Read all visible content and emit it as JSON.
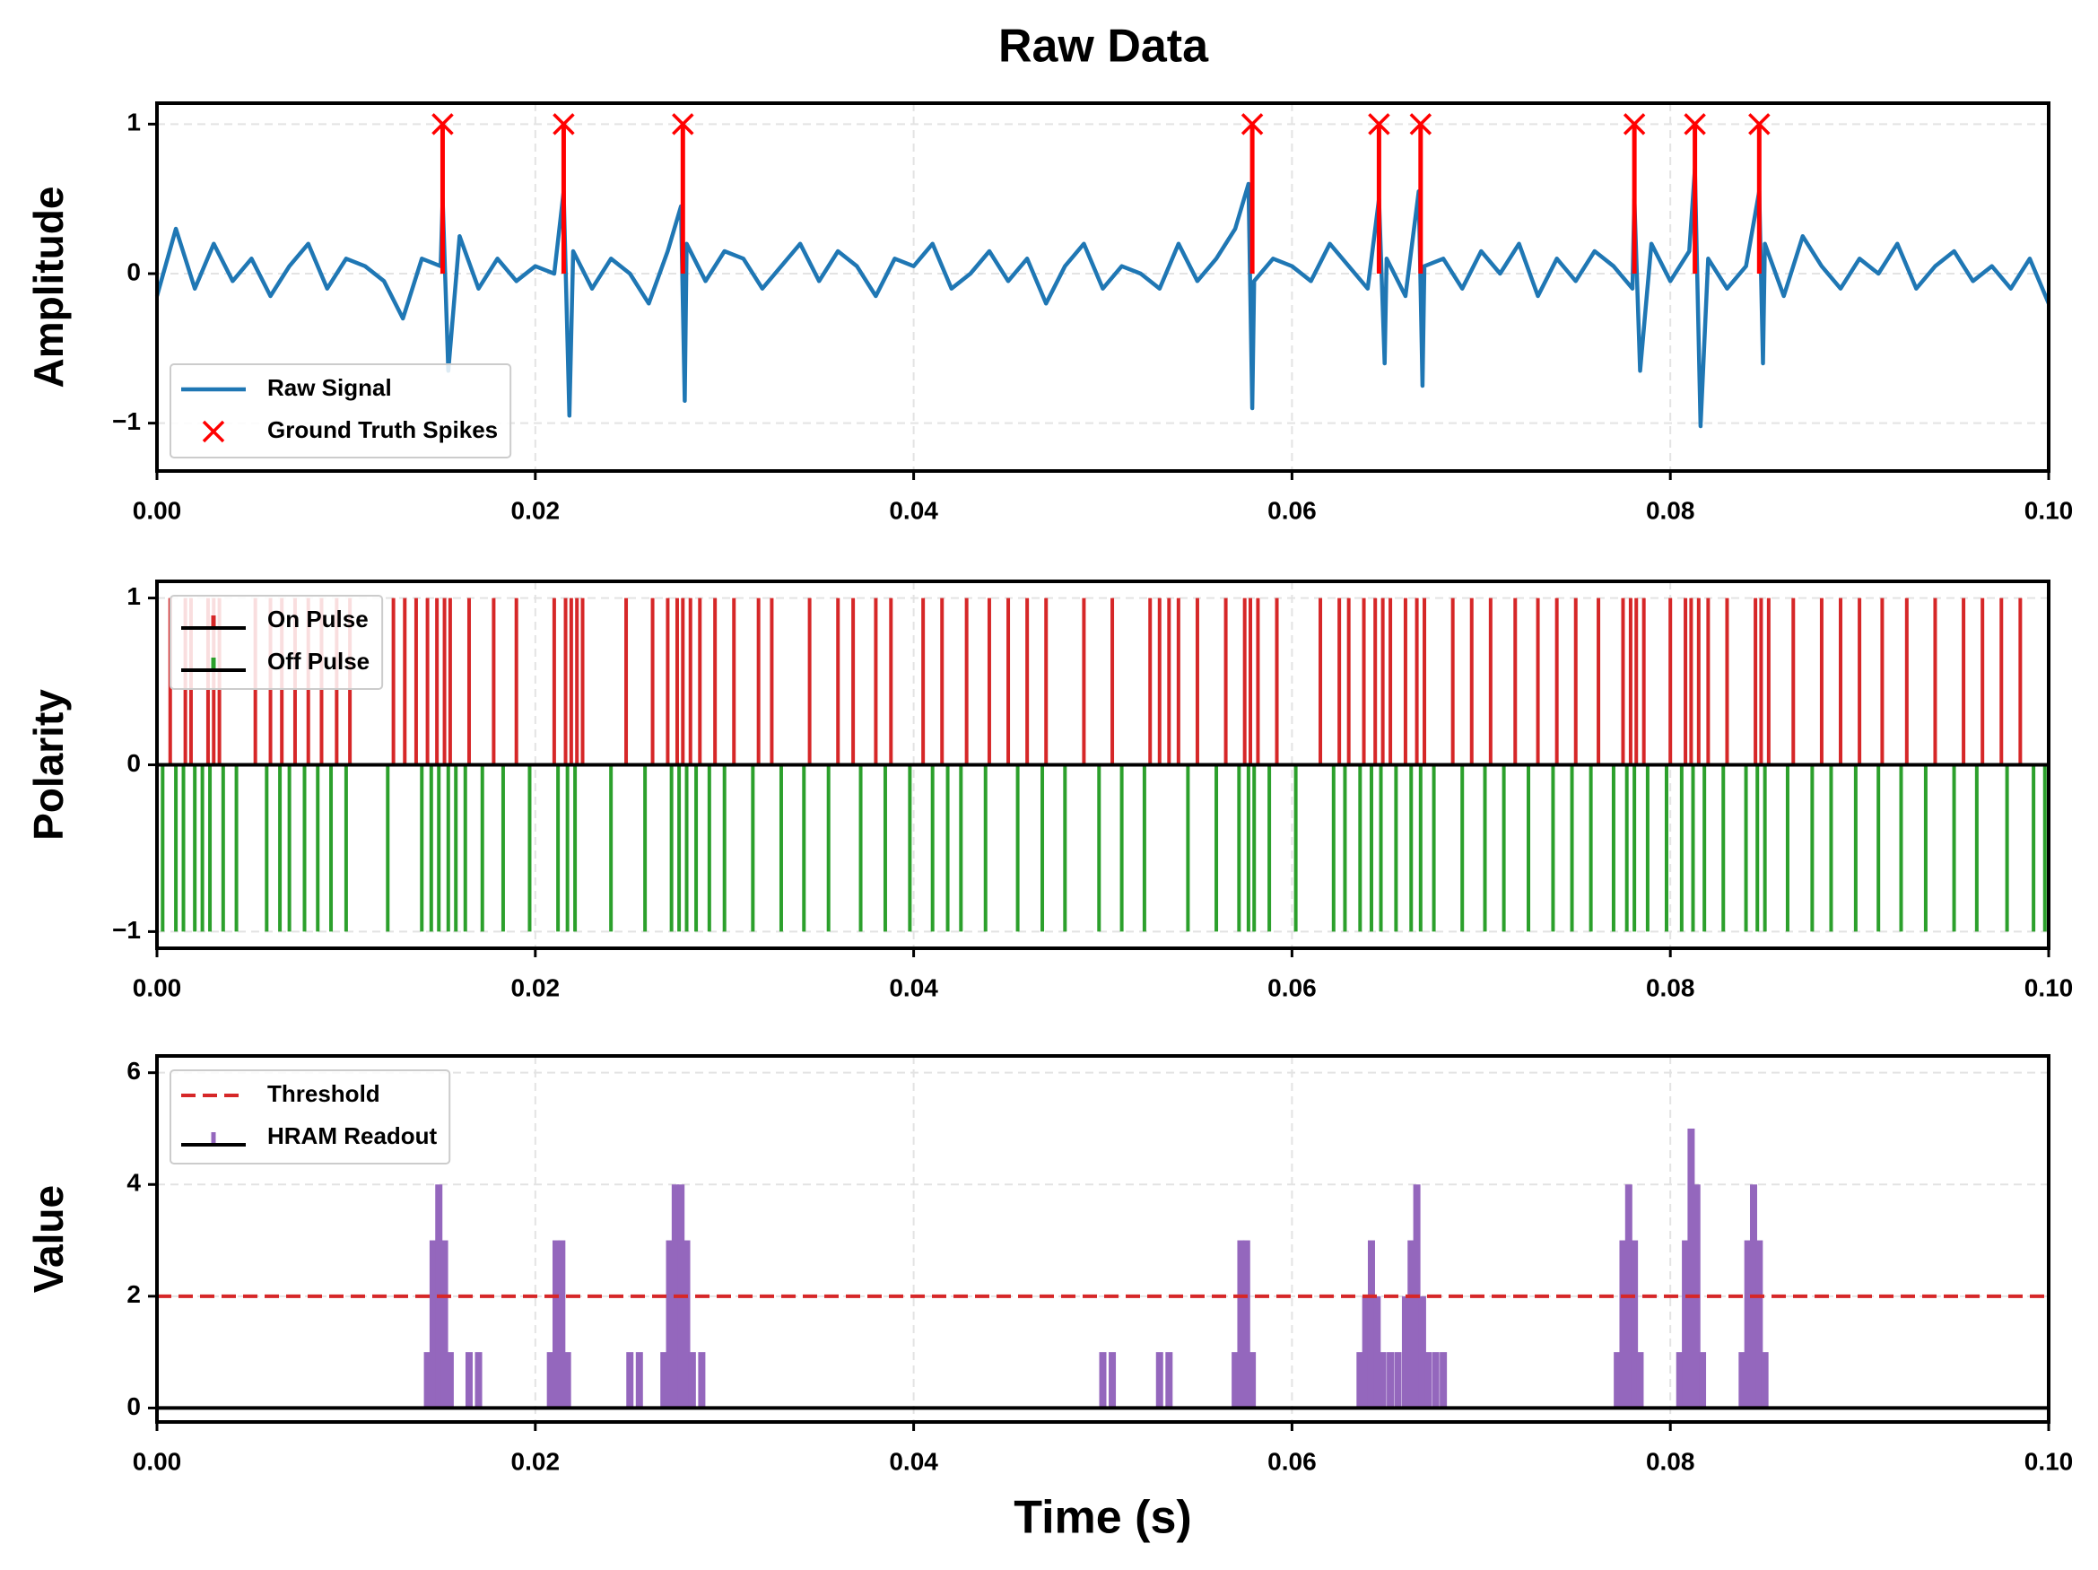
{
  "title": "Raw Data",
  "chart_data": [
    {
      "type": "line",
      "ylabel": "Amplitude",
      "legend": "lower left",
      "grid": true,
      "xlim": [
        0,
        0.1
      ],
      "xticks": [
        {
          "value": 0,
          "label": "0.00"
        },
        {
          "value": 0.02,
          "label": "0.02"
        },
        {
          "value": 0.04,
          "label": "0.04"
        },
        {
          "value": 0.06,
          "label": "0.06"
        },
        {
          "value": 0.08,
          "label": "0.08"
        },
        {
          "value": 0.1,
          "label": "0.10"
        }
      ],
      "ylim": [
        -1.32,
        1.14
      ],
      "yticks": [
        {
          "value": -1,
          "label": "−1"
        },
        0,
        1
      ],
      "series": [
        {
          "name": "Raw Signal",
          "color": "#1f77b4",
          "x": [
            0,
            0.001,
            0.002,
            0.003,
            0.004,
            0.005,
            0.006,
            0.007,
            0.008,
            0.009,
            0.01,
            0.011,
            0.012,
            0.013,
            0.014,
            0.015,
            0.0151,
            0.0154,
            0.016,
            0.017,
            0.018,
            0.019,
            0.02,
            0.021,
            0.0215,
            0.0218,
            0.022,
            0.023,
            0.024,
            0.025,
            0.026,
            0.027,
            0.0277,
            0.0279,
            0.028,
            0.029,
            0.03,
            0.031,
            0.032,
            0.033,
            0.034,
            0.035,
            0.036,
            0.037,
            0.038,
            0.039,
            0.04,
            0.041,
            0.042,
            0.043,
            0.044,
            0.045,
            0.046,
            0.047,
            0.048,
            0.049,
            0.05,
            0.051,
            0.052,
            0.053,
            0.054,
            0.055,
            0.056,
            0.057,
            0.0577,
            0.0579,
            0.058,
            0.059,
            0.06,
            0.061,
            0.062,
            0.063,
            0.064,
            0.0646,
            0.0649,
            0.065,
            0.066,
            0.0667,
            0.0669,
            0.067,
            0.068,
            0.069,
            0.07,
            0.071,
            0.072,
            0.073,
            0.074,
            0.075,
            0.076,
            0.077,
            0.078,
            0.0781,
            0.0784,
            0.079,
            0.08,
            0.081,
            0.0813,
            0.0816,
            0.082,
            0.083,
            0.084,
            0.0847,
            0.0849,
            0.085,
            0.086,
            0.087,
            0.088,
            0.089,
            0.09,
            0.091,
            0.092,
            0.093,
            0.094,
            0.095,
            0.096,
            0.097,
            0.098,
            0.099,
            0.1
          ],
          "values": [
            -0.15,
            0.3,
            -0.1,
            0.2,
            -0.05,
            0.1,
            -0.15,
            0.05,
            0.2,
            -0.1,
            0.1,
            0.05,
            -0.05,
            -0.3,
            0.1,
            0.05,
            0.5,
            -0.65,
            0.25,
            -0.1,
            0.1,
            -0.05,
            0.05,
            0.0,
            0.55,
            -0.95,
            0.15,
            -0.1,
            0.1,
            0.0,
            -0.2,
            0.15,
            0.45,
            -0.85,
            0.2,
            -0.05,
            0.15,
            0.1,
            -0.1,
            0.05,
            0.2,
            -0.05,
            0.15,
            0.05,
            -0.15,
            0.1,
            0.05,
            0.2,
            -0.1,
            0.0,
            0.15,
            -0.05,
            0.1,
            -0.2,
            0.05,
            0.2,
            -0.1,
            0.05,
            0.0,
            -0.1,
            0.2,
            -0.05,
            0.1,
            0.3,
            0.6,
            -0.9,
            -0.05,
            0.1,
            0.05,
            -0.05,
            0.2,
            0.05,
            -0.1,
            0.5,
            -0.6,
            0.1,
            -0.15,
            0.55,
            -0.75,
            0.05,
            0.1,
            -0.1,
            0.15,
            0.0,
            0.2,
            -0.15,
            0.1,
            -0.05,
            0.15,
            0.05,
            -0.1,
            0.5,
            -0.65,
            0.2,
            -0.05,
            0.15,
            0.7,
            -1.02,
            0.1,
            -0.1,
            0.05,
            0.55,
            -0.6,
            0.2,
            -0.15,
            0.25,
            0.05,
            -0.1,
            0.1,
            0.0,
            0.2,
            -0.1,
            0.05,
            0.15,
            -0.05,
            0.05,
            -0.1,
            0.1,
            -0.2
          ]
        },
        {
          "name": "Ground Truth Spikes",
          "color": "#ff0000",
          "marker": "x",
          "x": [
            0.0151,
            0.0215,
            0.0278,
            0.0579,
            0.0646,
            0.0668,
            0.0781,
            0.0813,
            0.0847
          ],
          "values": [
            1,
            1,
            1,
            1,
            1,
            1,
            1,
            1,
            1
          ]
        }
      ]
    },
    {
      "type": "event",
      "ylabel": "Polarity",
      "legend": "upper left",
      "grid": true,
      "xlim": [
        0,
        0.1
      ],
      "xticks": [
        {
          "value": 0,
          "label": "0.00"
        },
        {
          "value": 0.02,
          "label": "0.02"
        },
        {
          "value": 0.04,
          "label": "0.04"
        },
        {
          "value": 0.06,
          "label": "0.06"
        },
        {
          "value": 0.08,
          "label": "0.08"
        },
        {
          "value": 0.1,
          "label": "0.10"
        }
      ],
      "ylim": [
        -1.1,
        1.1
      ],
      "yticks": [
        {
          "value": -1,
          "label": "−1"
        },
        0,
        1
      ],
      "series": [
        {
          "name": "On Pulse",
          "color": "#d62728",
          "level": 1,
          "x": [
            0.0007,
            0.0015,
            0.0018,
            0.0027,
            0.003,
            0.0033,
            0.0052,
            0.006,
            0.0066,
            0.0073,
            0.008,
            0.0087,
            0.0095,
            0.0102,
            0.0125,
            0.0131,
            0.0137,
            0.0143,
            0.0148,
            0.0152,
            0.0155,
            0.0165,
            0.0178,
            0.019,
            0.021,
            0.0216,
            0.0219,
            0.0222,
            0.0225,
            0.0248,
            0.0262,
            0.027,
            0.0275,
            0.0278,
            0.0282,
            0.0287,
            0.0295,
            0.0305,
            0.0318,
            0.0325,
            0.0345,
            0.036,
            0.0368,
            0.038,
            0.0388,
            0.0405,
            0.0415,
            0.0428,
            0.044,
            0.045,
            0.046,
            0.047,
            0.049,
            0.0505,
            0.0525,
            0.053,
            0.0535,
            0.054,
            0.055,
            0.0565,
            0.0575,
            0.0578,
            0.0582,
            0.0592,
            0.0615,
            0.0625,
            0.063,
            0.0638,
            0.0644,
            0.0648,
            0.0652,
            0.066,
            0.0666,
            0.067,
            0.0685,
            0.0695,
            0.0705,
            0.0718,
            0.073,
            0.074,
            0.075,
            0.0762,
            0.0775,
            0.0779,
            0.0782,
            0.0786,
            0.08,
            0.0808,
            0.0811,
            0.0815,
            0.082,
            0.083,
            0.0845,
            0.0848,
            0.0852,
            0.0865,
            0.088,
            0.089,
            0.09,
            0.0912,
            0.0925,
            0.094,
            0.0955,
            0.0965,
            0.0975,
            0.0985
          ]
        },
        {
          "name": "Off Pulse",
          "color": "#2ca02c",
          "level": -1,
          "x": [
            0.0003,
            0.001,
            0.0014,
            0.002,
            0.0024,
            0.0028,
            0.0035,
            0.0042,
            0.0058,
            0.0065,
            0.007,
            0.0078,
            0.0085,
            0.0092,
            0.01,
            0.0122,
            0.014,
            0.0145,
            0.0149,
            0.0154,
            0.0158,
            0.0163,
            0.0172,
            0.0183,
            0.0197,
            0.0212,
            0.0217,
            0.0221,
            0.024,
            0.0258,
            0.0272,
            0.0276,
            0.028,
            0.0285,
            0.0292,
            0.03,
            0.0315,
            0.033,
            0.0342,
            0.0355,
            0.0372,
            0.0385,
            0.0398,
            0.041,
            0.0418,
            0.0425,
            0.0438,
            0.0455,
            0.0468,
            0.048,
            0.0498,
            0.051,
            0.0522,
            0.0545,
            0.056,
            0.0572,
            0.0577,
            0.058,
            0.0588,
            0.0602,
            0.0622,
            0.0628,
            0.0636,
            0.0642,
            0.0647,
            0.0655,
            0.0663,
            0.0668,
            0.0675,
            0.069,
            0.0702,
            0.0712,
            0.0725,
            0.0738,
            0.0748,
            0.0758,
            0.077,
            0.0777,
            0.0781,
            0.0788,
            0.0798,
            0.0806,
            0.0812,
            0.0818,
            0.0828,
            0.084,
            0.0846,
            0.085,
            0.0862,
            0.0875,
            0.0885,
            0.0898,
            0.091,
            0.0922,
            0.0935,
            0.095,
            0.0962,
            0.0978,
            0.0992,
            0.0998
          ]
        }
      ]
    },
    {
      "type": "bar",
      "ylabel": "Value",
      "xlabel": "Time (s)",
      "legend": "upper left",
      "grid": true,
      "xlim": [
        0,
        0.1
      ],
      "xticks": [
        {
          "value": 0,
          "label": "0.00"
        },
        {
          "value": 0.02,
          "label": "0.02"
        },
        {
          "value": 0.04,
          "label": "0.04"
        },
        {
          "value": 0.06,
          "label": "0.06"
        },
        {
          "value": 0.08,
          "label": "0.08"
        },
        {
          "value": 0.1,
          "label": "0.10"
        }
      ],
      "ylim": [
        -0.25,
        6.3
      ],
      "yticks": [
        0,
        2,
        4,
        6
      ],
      "threshold": {
        "name": "Threshold",
        "color": "#d62728",
        "value": 2
      },
      "series": [
        {
          "name": "HRAM Readout",
          "color": "#9467bd",
          "x": [
            0.0143,
            0.0146,
            0.0149,
            0.0152,
            0.0155,
            0.0165,
            0.017,
            0.0208,
            0.0211,
            0.0214,
            0.0217,
            0.025,
            0.0255,
            0.0268,
            0.0271,
            0.0274,
            0.0277,
            0.028,
            0.0283,
            0.0288,
            0.05,
            0.0505,
            0.053,
            0.0535,
            0.057,
            0.0573,
            0.0576,
            0.0579,
            0.0636,
            0.0639,
            0.0642,
            0.0645,
            0.0648,
            0.0652,
            0.0656,
            0.066,
            0.0663,
            0.0666,
            0.0669,
            0.0672,
            0.0676,
            0.068,
            0.0772,
            0.0775,
            0.0778,
            0.0781,
            0.0784,
            0.0805,
            0.0808,
            0.0811,
            0.0814,
            0.0817,
            0.0838,
            0.0841,
            0.0844,
            0.0847,
            0.085
          ],
          "values": [
            1,
            3,
            4,
            3,
            1,
            1,
            1,
            1,
            3,
            3,
            1,
            1,
            1,
            1,
            3,
            4,
            4,
            3,
            1,
            1,
            1,
            1,
            1,
            1,
            1,
            3,
            3,
            1,
            1,
            2,
            3,
            2,
            1,
            1,
            1,
            2,
            3,
            4,
            2,
            1,
            1,
            1,
            1,
            3,
            4,
            3,
            1,
            1,
            3,
            5,
            4,
            1,
            1,
            3,
            4,
            3,
            1
          ]
        }
      ]
    }
  ]
}
